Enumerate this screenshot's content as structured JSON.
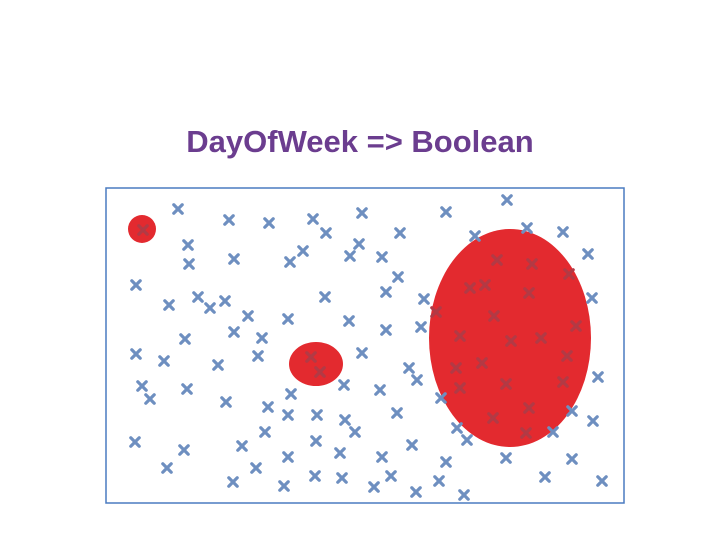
{
  "slide": {
    "title": "DayOfWeek => Boolean"
  },
  "colors": {
    "title": "#6b3d8f",
    "box_border": "#4a7bc0",
    "marker": "#6e8fc0",
    "region": "#e32a2f",
    "region_marker": "#b23a45"
  },
  "icons": {
    "marker": "x-mark-icon"
  }
}
